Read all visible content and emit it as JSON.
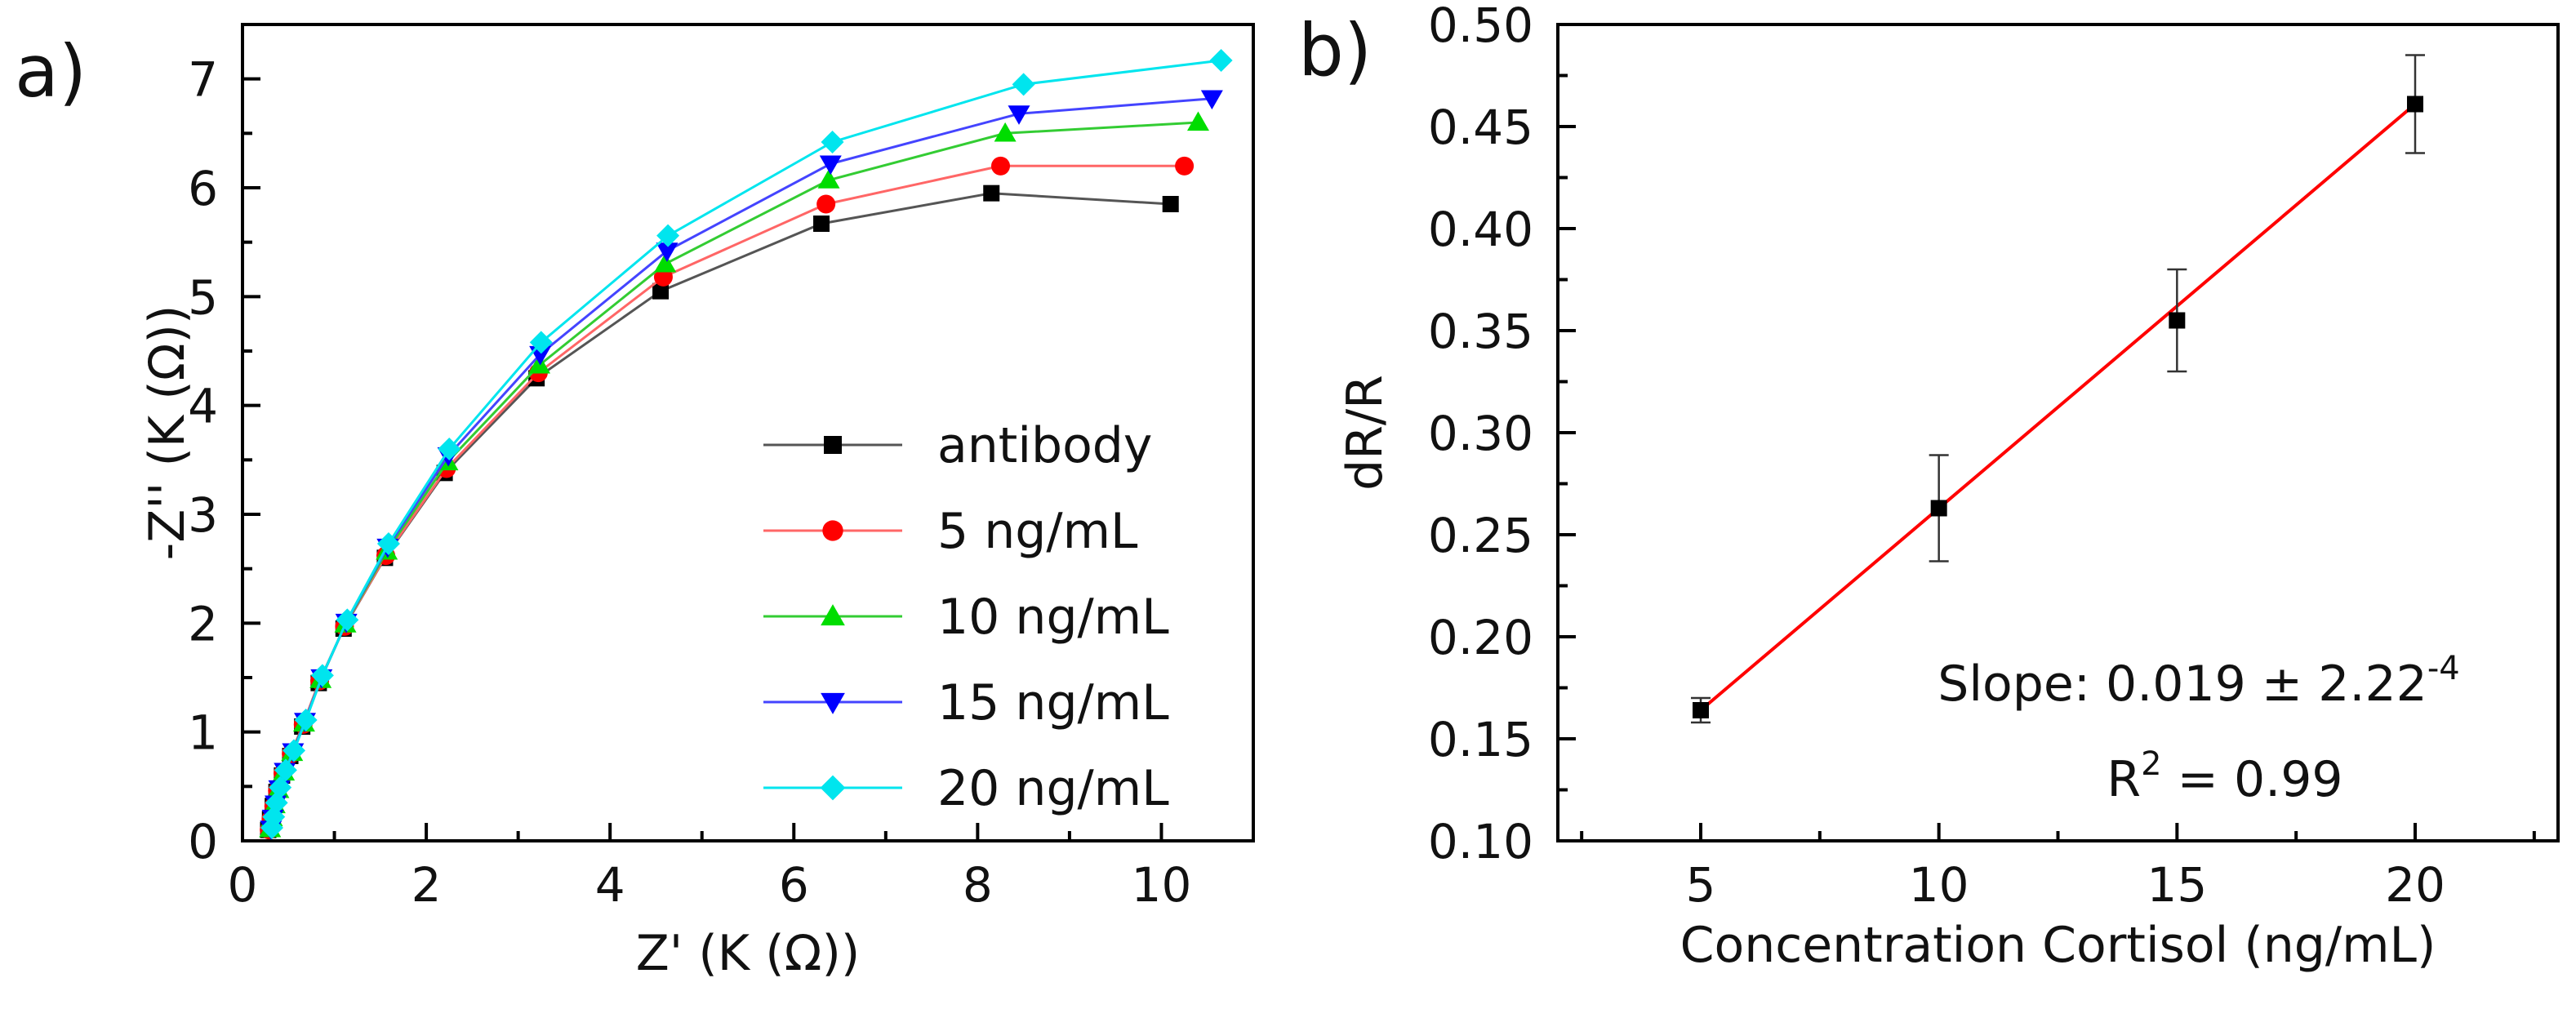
{
  "chart_data": [
    {
      "type": "line",
      "panel_label": "a)",
      "title": "",
      "xlabel": "Z' (K (Ω))",
      "ylabel": "-Z'' (K (Ω))",
      "xlim": [
        0,
        11
      ],
      "ylim": [
        0,
        7.5
      ],
      "xticks": [
        0,
        2,
        4,
        6,
        8,
        10
      ],
      "yticks": [
        0,
        1,
        2,
        3,
        4,
        5,
        6,
        7
      ],
      "grid": false,
      "legend_position": "lower-right",
      "series": [
        {
          "name": "antibody",
          "color": "#000000",
          "line_color": "#555555",
          "marker": "square",
          "x": [
            0.28,
            0.3,
            0.33,
            0.37,
            0.43,
            0.52,
            0.65,
            0.83,
            1.1,
            1.55,
            2.2,
            3.2,
            4.55,
            6.3,
            8.15,
            10.1
          ],
          "y": [
            0.1,
            0.2,
            0.32,
            0.45,
            0.6,
            0.78,
            1.05,
            1.45,
            1.95,
            2.6,
            3.38,
            4.25,
            5.05,
            5.67,
            5.95,
            5.85
          ]
        },
        {
          "name": "5 ng/mL",
          "color": "#ff0000",
          "line_color": "#ff6666",
          "marker": "circle",
          "x": [
            0.29,
            0.31,
            0.34,
            0.38,
            0.44,
            0.53,
            0.66,
            0.84,
            1.11,
            1.56,
            2.22,
            3.22,
            4.58,
            6.35,
            8.25,
            10.25
          ],
          "y": [
            0.1,
            0.2,
            0.32,
            0.46,
            0.62,
            0.8,
            1.07,
            1.47,
            1.97,
            2.62,
            3.42,
            4.3,
            5.18,
            5.85,
            6.2,
            6.2
          ]
        },
        {
          "name": "10 ng/mL",
          "color": "#00dd00",
          "line_color": "#33cc33",
          "marker": "triangle-up",
          "x": [
            0.3,
            0.32,
            0.35,
            0.39,
            0.45,
            0.54,
            0.67,
            0.85,
            1.12,
            1.57,
            2.23,
            3.23,
            4.6,
            6.38,
            8.3,
            10.4
          ],
          "y": [
            0.11,
            0.21,
            0.33,
            0.47,
            0.63,
            0.81,
            1.08,
            1.48,
            1.99,
            2.66,
            3.48,
            4.37,
            5.3,
            6.07,
            6.5,
            6.6
          ]
        },
        {
          "name": "15 ng/mL",
          "color": "#0000ff",
          "line_color": "#4444ff",
          "marker": "triangle-down",
          "x": [
            0.31,
            0.33,
            0.36,
            0.4,
            0.46,
            0.55,
            0.68,
            0.86,
            1.13,
            1.58,
            2.24,
            3.24,
            4.62,
            6.4,
            8.45,
            10.55
          ],
          "y": [
            0.11,
            0.21,
            0.34,
            0.48,
            0.64,
            0.82,
            1.1,
            1.5,
            2.01,
            2.7,
            3.54,
            4.47,
            5.42,
            6.22,
            6.68,
            6.82
          ]
        },
        {
          "name": "20 ng/mL",
          "color": "#00e5ee",
          "line_color": "#00e5ee",
          "marker": "diamond",
          "x": [
            0.32,
            0.34,
            0.37,
            0.41,
            0.47,
            0.56,
            0.69,
            0.87,
            1.14,
            1.59,
            2.25,
            3.25,
            4.63,
            6.42,
            8.5,
            10.65
          ],
          "y": [
            0.12,
            0.22,
            0.35,
            0.49,
            0.65,
            0.83,
            1.11,
            1.52,
            2.03,
            2.73,
            3.6,
            4.58,
            5.56,
            6.42,
            6.95,
            7.17
          ]
        }
      ]
    },
    {
      "type": "scatter",
      "panel_label": "b)",
      "title": "",
      "xlabel": "Concentration Cortisol (ng/mL)",
      "ylabel": "dR/R",
      "xlim": [
        2,
        23
      ],
      "ylim": [
        0.1,
        0.5
      ],
      "xticks": [
        5,
        10,
        15,
        20
      ],
      "yticks": [
        0.1,
        0.15,
        0.2,
        0.25,
        0.3,
        0.35,
        0.4,
        0.45,
        0.5
      ],
      "ytick_labels": [
        "0.10",
        "0.15",
        "0.20",
        "0.25",
        "0.30",
        "0.35",
        "0.40",
        "0.45",
        "0.50"
      ],
      "grid": false,
      "marker_color": "#000000",
      "fit_color": "#ff0000",
      "x": [
        5,
        10,
        15,
        20
      ],
      "y": [
        0.164,
        0.263,
        0.355,
        0.461
      ],
      "err": [
        0.006,
        0.026,
        0.025,
        0.024
      ],
      "fit": {
        "x": [
          5,
          20
        ],
        "y": [
          0.164,
          0.461
        ]
      },
      "annotations": {
        "slope_prefix": "Slope: 0.019 ± 2.22",
        "slope_exponent": "-4",
        "r2_prefix": "R",
        "r2_exponent": "2",
        "r2_suffix": " = 0.99"
      }
    }
  ]
}
